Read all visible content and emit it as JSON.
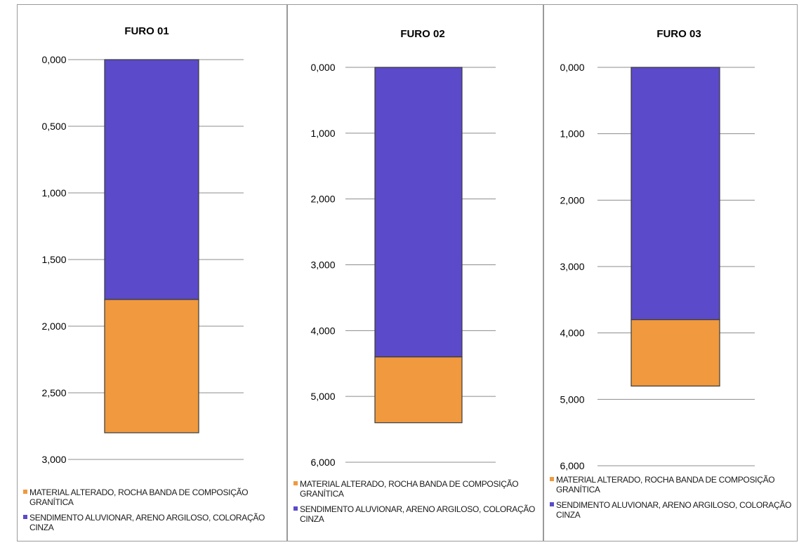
{
  "colors": {
    "top_layer": "#5b4ac9",
    "bottom_layer": "#f0993e",
    "grid": "#8c8c8c"
  },
  "legend": {
    "item1": "MATERIAL ALTERADO, ROCHA BANDA DE COMPOSIÇÃO GRANÍTICA",
    "item2": "SENDIMENTO ALUVIONAR, ARENO ARGILOSO, COLORAÇÃO CINZA"
  },
  "chart_data": [
    {
      "type": "bar",
      "stacked": true,
      "title": "FURO 01",
      "y_reversed": true,
      "ylim": [
        0,
        3
      ],
      "y_ticks": [
        "0,000",
        "0,500",
        "1,000",
        "1,500",
        "2,000",
        "2,500",
        "3,000"
      ],
      "y_tick_values": [
        0,
        0.5,
        1,
        1.5,
        2,
        2.5,
        3
      ],
      "series": [
        {
          "name": "SENDIMENTO ALUVIONAR, ARENO ARGILOSO, COLORAÇÃO CINZA",
          "from": 0,
          "to": 1.8
        },
        {
          "name": "MATERIAL ALTERADO, ROCHA BANDA DE COMPOSIÇÃO GRANÍTICA",
          "from": 1.8,
          "to": 2.8
        }
      ],
      "grid": true,
      "legend_position": "bottom"
    },
    {
      "type": "bar",
      "stacked": true,
      "title": "FURO 02",
      "y_reversed": true,
      "ylim": [
        0,
        6
      ],
      "y_ticks": [
        "0,000",
        "1,000",
        "2,000",
        "3,000",
        "4,000",
        "5,000",
        "6,000"
      ],
      "y_tick_values": [
        0,
        1,
        2,
        3,
        4,
        5,
        6
      ],
      "series": [
        {
          "name": "SENDIMENTO ALUVIONAR, ARENO ARGILOSO, COLORAÇÃO CINZA",
          "from": 0,
          "to": 4.4
        },
        {
          "name": "MATERIAL ALTERADO, ROCHA BANDA DE COMPOSIÇÃO GRANÍTICA",
          "from": 4.4,
          "to": 5.4
        }
      ],
      "grid": true,
      "legend_position": "bottom"
    },
    {
      "type": "bar",
      "stacked": true,
      "title": "FURO 03",
      "y_reversed": true,
      "ylim": [
        0,
        6
      ],
      "y_ticks": [
        "0,000",
        "1,000",
        "2,000",
        "3,000",
        "4,000",
        "5,000",
        "6,000"
      ],
      "y_tick_values": [
        0,
        1,
        2,
        3,
        4,
        5,
        6
      ],
      "series": [
        {
          "name": "SENDIMENTO ALUVIONAR, ARENO ARGILOSO, COLORAÇÃO CINZA",
          "from": 0,
          "to": 3.8
        },
        {
          "name": "MATERIAL ALTERADO, ROCHA BANDA DE COMPOSIÇÃO GRANÍTICA",
          "from": 3.8,
          "to": 4.8
        }
      ],
      "grid": true,
      "legend_position": "bottom"
    }
  ]
}
